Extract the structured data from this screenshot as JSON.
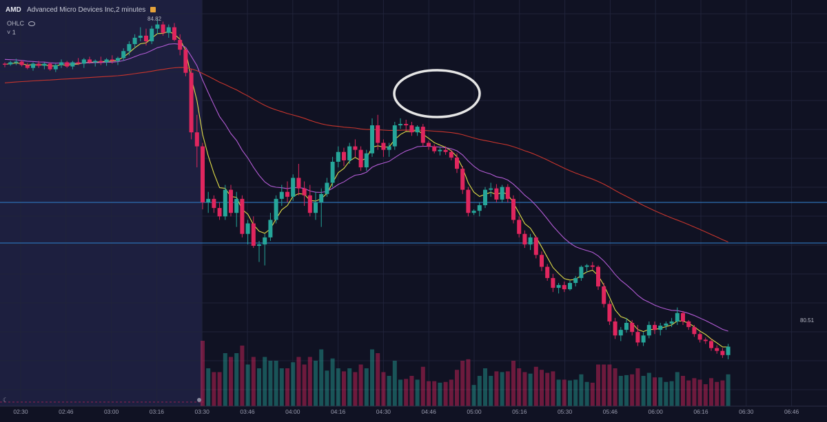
{
  "header": {
    "symbol": "AMD",
    "title": "Advanced Micro Devices Inc,2 minutes",
    "indicator_label": "OHLC",
    "collapse_label": "˅ 1"
  },
  "colors": {
    "background": "#101223",
    "shaded_region": "#1d1f3f",
    "grid": "#20233a",
    "up": "#26a69a",
    "down": "#e0265e",
    "ma_fast": "#e3df49",
    "ma_mid": "#b45cd6",
    "ma_slow": "#c8352d",
    "hline": "#2d6fb3",
    "circle": "#e6e6e6"
  },
  "chart_data": {
    "type": "candlestick",
    "title": "AMD Advanced Micro Devices Inc,2 minutes",
    "x_ticks": [
      "02:30",
      "02:46",
      "03:00",
      "03:16",
      "03:30",
      "03:46",
      "04:00",
      "04:16",
      "04:30",
      "04:46",
      "05:00",
      "05:16",
      "05:30",
      "05:46",
      "06:00",
      "06:16",
      "06:30",
      "06:46"
    ],
    "price_labels": [
      {
        "label": "84.82",
        "value": 84.82
      },
      {
        "label": "80.51",
        "value": 80.51
      }
    ],
    "y_range": [
      79.9,
      85.05
    ],
    "horizontal_lines": [
      82.2,
      81.62
    ],
    "shaded_region": {
      "from": "start",
      "to": "03:30"
    },
    "annotation": {
      "type": "ellipse",
      "around": "04:40-04:50"
    },
    "grid": true,
    "candles": [
      [
        84.18,
        84.2,
        84.13,
        84.17
      ],
      [
        84.17,
        84.22,
        84.15,
        84.2
      ],
      [
        84.2,
        84.25,
        84.16,
        84.21
      ],
      [
        84.21,
        84.23,
        84.14,
        84.16
      ],
      [
        84.16,
        84.19,
        84.1,
        84.12
      ],
      [
        84.12,
        84.2,
        84.08,
        84.18
      ],
      [
        84.18,
        84.22,
        84.12,
        84.15
      ],
      [
        84.15,
        84.2,
        84.1,
        84.18
      ],
      [
        84.18,
        84.2,
        84.08,
        84.1
      ],
      [
        84.1,
        84.18,
        84.06,
        84.16
      ],
      [
        84.16,
        84.24,
        84.12,
        84.2
      ],
      [
        84.2,
        84.22,
        84.12,
        84.14
      ],
      [
        84.14,
        84.22,
        84.1,
        84.2
      ],
      [
        84.2,
        84.26,
        84.16,
        84.18
      ],
      [
        84.18,
        84.26,
        84.12,
        84.24
      ],
      [
        84.24,
        84.28,
        84.18,
        84.2
      ],
      [
        84.2,
        84.24,
        84.14,
        84.22
      ],
      [
        84.22,
        84.28,
        84.16,
        84.2
      ],
      [
        84.2,
        84.26,
        84.15,
        84.24
      ],
      [
        84.24,
        84.3,
        84.18,
        84.22
      ],
      [
        84.22,
        84.28,
        84.16,
        84.26
      ],
      [
        84.26,
        84.4,
        84.22,
        84.36
      ],
      [
        84.36,
        84.5,
        84.3,
        84.46
      ],
      [
        84.46,
        84.6,
        84.4,
        84.55
      ],
      [
        84.55,
        84.7,
        84.5,
        84.58
      ],
      [
        84.58,
        84.68,
        84.44,
        84.5
      ],
      [
        84.5,
        84.72,
        84.46,
        84.68
      ],
      [
        84.68,
        84.82,
        84.6,
        84.74
      ],
      [
        84.74,
        84.78,
        84.58,
        84.62
      ],
      [
        84.62,
        84.74,
        84.55,
        84.7
      ],
      [
        84.7,
        84.76,
        84.5,
        84.52
      ],
      [
        84.52,
        84.6,
        84.3,
        84.38
      ],
      [
        84.38,
        84.42,
        84.0,
        84.05
      ],
      [
        84.05,
        84.1,
        83.1,
        83.2
      ],
      [
        83.2,
        83.45,
        82.7,
        83.0
      ],
      [
        83.0,
        83.05,
        82.1,
        82.2
      ],
      [
        82.2,
        82.35,
        82.05,
        82.25
      ],
      [
        82.25,
        82.3,
        82.05,
        82.12
      ],
      [
        82.12,
        82.2,
        81.95,
        82.0
      ],
      [
        82.0,
        82.45,
        81.95,
        82.38
      ],
      [
        82.38,
        82.45,
        82.0,
        82.05
      ],
      [
        82.05,
        82.35,
        81.85,
        82.25
      ],
      [
        82.25,
        82.3,
        81.7,
        81.75
      ],
      [
        81.75,
        81.95,
        81.6,
        81.9
      ],
      [
        81.9,
        82.0,
        81.55,
        81.58
      ],
      [
        81.58,
        81.65,
        81.35,
        81.6
      ],
      [
        81.6,
        81.75,
        81.3,
        81.7
      ],
      [
        81.7,
        82.05,
        81.65,
        81.95
      ],
      [
        81.95,
        82.3,
        81.9,
        82.25
      ],
      [
        82.25,
        82.45,
        82.15,
        82.35
      ],
      [
        82.35,
        82.5,
        82.2,
        82.28
      ],
      [
        82.28,
        82.6,
        82.22,
        82.55
      ],
      [
        82.55,
        82.75,
        82.3,
        82.4
      ],
      [
        82.4,
        82.5,
        82.15,
        82.3
      ],
      [
        82.3,
        82.45,
        82.0,
        82.05
      ],
      [
        82.05,
        82.35,
        81.95,
        82.2
      ],
      [
        82.2,
        82.4,
        81.85,
        82.32
      ],
      [
        82.32,
        82.55,
        82.28,
        82.48
      ],
      [
        82.48,
        82.85,
        82.42,
        82.78
      ],
      [
        82.78,
        83.0,
        82.7,
        82.92
      ],
      [
        82.92,
        82.98,
        82.72,
        82.8
      ],
      [
        82.8,
        83.05,
        82.75,
        83.0
      ],
      [
        83.0,
        83.1,
        82.85,
        82.95
      ],
      [
        82.95,
        83.0,
        82.65,
        82.7
      ],
      [
        82.7,
        82.95,
        82.65,
        82.9
      ],
      [
        82.9,
        83.4,
        82.85,
        83.3
      ],
      [
        83.3,
        83.45,
        82.95,
        83.05
      ],
      [
        83.05,
        83.1,
        82.85,
        82.95
      ],
      [
        82.95,
        83.05,
        82.85,
        83.0
      ],
      [
        83.0,
        83.35,
        82.95,
        83.3
      ],
      [
        83.3,
        83.4,
        83.25,
        83.32
      ],
      [
        83.32,
        83.38,
        83.22,
        83.3
      ],
      [
        83.3,
        83.35,
        83.15,
        83.2
      ],
      [
        83.2,
        83.3,
        83.15,
        83.28
      ],
      [
        83.28,
        83.32,
        83.0,
        83.05
      ],
      [
        83.05,
        83.08,
        82.95,
        83.0
      ],
      [
        83.0,
        83.03,
        82.9,
        82.93
      ],
      [
        82.93,
        82.98,
        82.87,
        82.95
      ],
      [
        82.95,
        83.0,
        82.88,
        82.92
      ],
      [
        82.92,
        82.95,
        82.8,
        82.84
      ],
      [
        82.84,
        82.9,
        82.62,
        82.68
      ],
      [
        82.68,
        82.72,
        82.32,
        82.38
      ],
      [
        82.38,
        82.42,
        82.0,
        82.05
      ],
      [
        82.05,
        82.1,
        82.02,
        82.08
      ],
      [
        82.08,
        82.2,
        82.0,
        82.16
      ],
      [
        82.16,
        82.42,
        82.12,
        82.38
      ],
      [
        82.38,
        82.48,
        82.28,
        82.4
      ],
      [
        82.4,
        82.46,
        82.2,
        82.24
      ],
      [
        82.24,
        82.45,
        82.2,
        82.42
      ],
      [
        82.42,
        82.46,
        82.2,
        82.25
      ],
      [
        82.25,
        82.3,
        81.9,
        81.95
      ],
      [
        81.95,
        82.0,
        81.7,
        81.75
      ],
      [
        81.75,
        81.8,
        81.55,
        81.6
      ],
      [
        81.6,
        81.75,
        81.52,
        81.7
      ],
      [
        81.7,
        81.72,
        81.4,
        81.45
      ],
      [
        81.45,
        81.5,
        81.22,
        81.28
      ],
      [
        81.28,
        81.32,
        81.08,
        81.12
      ],
      [
        81.12,
        81.18,
        80.92,
        80.98
      ],
      [
        80.98,
        81.05,
        80.9,
        81.02
      ],
      [
        81.02,
        81.07,
        80.92,
        80.96
      ],
      [
        80.96,
        81.08,
        80.94,
        81.05
      ],
      [
        81.05,
        81.15,
        81.0,
        81.12
      ],
      [
        81.12,
        81.3,
        81.08,
        81.28
      ],
      [
        81.28,
        81.32,
        81.2,
        81.3
      ],
      [
        81.3,
        81.35,
        81.24,
        81.28
      ],
      [
        81.28,
        81.3,
        80.95,
        81.0
      ],
      [
        81.0,
        81.05,
        80.7,
        80.75
      ],
      [
        80.75,
        80.8,
        80.45,
        80.5
      ],
      [
        80.5,
        80.55,
        80.25,
        80.3
      ],
      [
        80.3,
        80.42,
        80.22,
        80.38
      ],
      [
        80.38,
        80.55,
        80.34,
        80.48
      ],
      [
        80.48,
        80.52,
        80.3,
        80.35
      ],
      [
        80.35,
        80.45,
        80.15,
        80.2
      ],
      [
        80.2,
        80.35,
        80.15,
        80.3
      ],
      [
        80.3,
        80.5,
        80.26,
        80.45
      ],
      [
        80.45,
        80.5,
        80.32,
        80.38
      ],
      [
        80.38,
        80.48,
        80.3,
        80.44
      ],
      [
        80.44,
        80.5,
        80.38,
        80.47
      ],
      [
        80.47,
        80.55,
        80.42,
        80.5
      ],
      [
        80.5,
        80.7,
        80.45,
        80.62
      ],
      [
        80.62,
        80.65,
        80.45,
        80.5
      ],
      [
        80.5,
        80.52,
        80.38,
        80.42
      ],
      [
        80.42,
        80.45,
        80.28,
        80.32
      ],
      [
        80.32,
        80.35,
        80.2,
        80.24
      ],
      [
        80.24,
        80.27,
        80.18,
        80.22
      ],
      [
        80.22,
        80.25,
        80.08,
        80.12
      ],
      [
        80.12,
        80.16,
        80.04,
        80.08
      ],
      [
        80.08,
        80.12,
        79.98,
        80.02
      ],
      [
        80.02,
        80.18,
        79.96,
        80.14
      ]
    ],
    "series": [
      {
        "values_from": "moving averages of candle closes (fast / mid / slow)"
      }
    ]
  }
}
